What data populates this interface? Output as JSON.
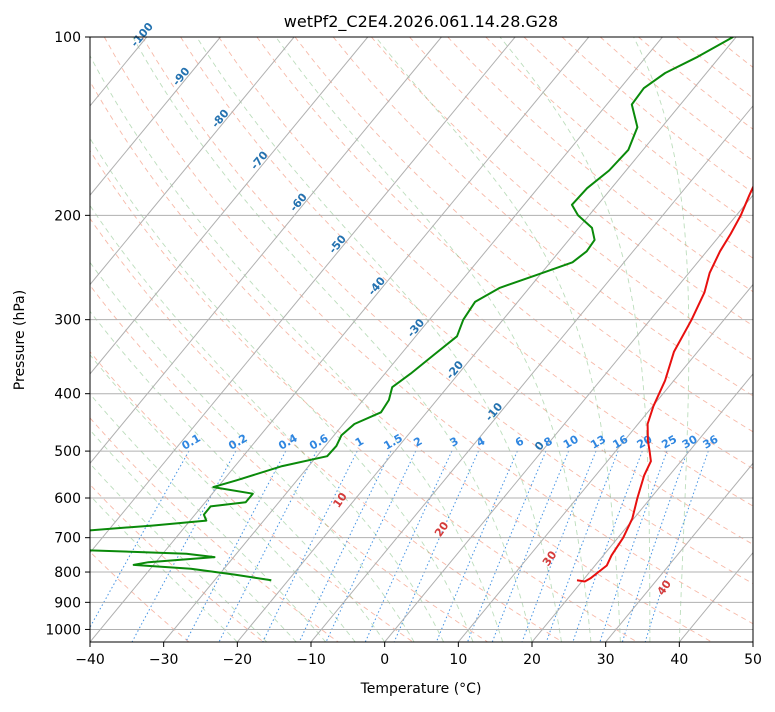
{
  "chart_data": {
    "type": "line",
    "title": "wetPf2_C2E4.2026.061.14.28.G28",
    "xlabel": "Temperature (°C)",
    "ylabel": "Pressure (hPa)",
    "xlim": [
      -40,
      50
    ],
    "ylim": [
      1050,
      100
    ],
    "y_scale": "log",
    "skew": "skew-T log-p",
    "grid": true,
    "x_ticks": [
      -40,
      -30,
      -20,
      -10,
      0,
      10,
      20,
      30,
      40,
      50
    ],
    "y_ticks": [
      100,
      200,
      300,
      400,
      500,
      600,
      700,
      800,
      900,
      1000
    ],
    "colors": {
      "temperature": "#e8100f",
      "dewpoint": "#0a8a0a",
      "dry_adiabat": "#f08060",
      "moist_adiabat": "#6ab46a",
      "mixing_ratio": "#2f86e0",
      "isotherm_label": "#2472b0",
      "grid": "#b0b0b0"
    },
    "series": [
      {
        "name": "",
        "role": "temperature",
        "points": [
          [
            100,
            3.8
          ],
          [
            110,
            2.8
          ],
          [
            125,
            1.8
          ],
          [
            140,
            0.8
          ],
          [
            150,
            -0.5
          ],
          [
            160,
            -1.7
          ],
          [
            165,
            -1.9
          ],
          [
            175,
            -1.2
          ],
          [
            185,
            -0.5
          ],
          [
            200,
            0.6
          ],
          [
            215,
            1.3
          ],
          [
            230,
            1.8
          ],
          [
            250,
            2.8
          ],
          [
            270,
            4.3
          ],
          [
            300,
            5.6
          ],
          [
            340,
            6.8
          ],
          [
            380,
            8.8
          ],
          [
            420,
            10.1
          ],
          [
            450,
            11.3
          ],
          [
            480,
            13.2
          ],
          [
            500,
            14.6
          ],
          [
            520,
            15.9
          ],
          [
            550,
            16.6
          ],
          [
            600,
            18.2
          ],
          [
            650,
            19.8
          ],
          [
            700,
            20.7
          ],
          [
            750,
            21.1
          ],
          [
            780,
            21.6
          ],
          [
            800,
            21.2
          ],
          [
            820,
            20.8
          ],
          [
            830,
            20.4
          ],
          [
            826,
            19.2
          ]
        ]
      },
      {
        "name": "",
        "role": "dewpoint",
        "points": [
          [
            100,
            -20.4
          ],
          [
            108,
            -23.0
          ],
          [
            115,
            -25.6
          ],
          [
            122,
            -26.8
          ],
          [
            130,
            -26.6
          ],
          [
            142,
            -23.3
          ],
          [
            155,
            -22.0
          ],
          [
            168,
            -22.3
          ],
          [
            180,
            -23.3
          ],
          [
            192,
            -23.5
          ],
          [
            200,
            -21.5
          ],
          [
            210,
            -18.2
          ],
          [
            220,
            -16.5
          ],
          [
            230,
            -16.3
          ],
          [
            240,
            -17.0
          ],
          [
            252,
            -20.4
          ],
          [
            265,
            -24.0
          ],
          [
            280,
            -25.8
          ],
          [
            300,
            -25.4
          ],
          [
            320,
            -24.4
          ],
          [
            345,
            -25.5
          ],
          [
            370,
            -26.5
          ],
          [
            390,
            -27.5
          ],
          [
            410,
            -26.5
          ],
          [
            430,
            -26.2
          ],
          [
            450,
            -28.5
          ],
          [
            470,
            -29.0
          ],
          [
            490,
            -28.5
          ],
          [
            510,
            -28.6
          ],
          [
            530,
            -33.6
          ],
          [
            560,
            -38.2
          ],
          [
            575,
            -40.6
          ],
          [
            590,
            -34.5
          ],
          [
            610,
            -34.5
          ],
          [
            620,
            -38.8
          ],
          [
            640,
            -38.8
          ],
          [
            655,
            -37.8
          ],
          [
            668,
            -44.6
          ],
          [
            690,
            -58.6
          ],
          [
            700,
            -65.9
          ],
          [
            712,
            -78.7
          ],
          [
            730,
            -57.8
          ],
          [
            745,
            -36.8
          ],
          [
            755,
            -32.6
          ],
          [
            770,
            -41.0
          ],
          [
            778,
            -42.7
          ],
          [
            790,
            -34.5
          ],
          [
            808,
            -27.9
          ],
          [
            826,
            -22.3
          ]
        ]
      }
    ],
    "isotherm_labels": [
      -100,
      -90,
      -80,
      -70,
      -60,
      -50,
      -40,
      -30,
      -20,
      -10,
      0
    ],
    "dry_adiabat_labels": [
      10,
      20,
      30,
      40
    ],
    "mixing_ratio_labels": [
      "0.1",
      "0.2",
      "0.4",
      "0.6",
      "1",
      "1.5",
      "2",
      "3",
      "4",
      "6",
      "8",
      "10",
      "13",
      "16",
      "20",
      "25",
      "30",
      "36"
    ]
  }
}
